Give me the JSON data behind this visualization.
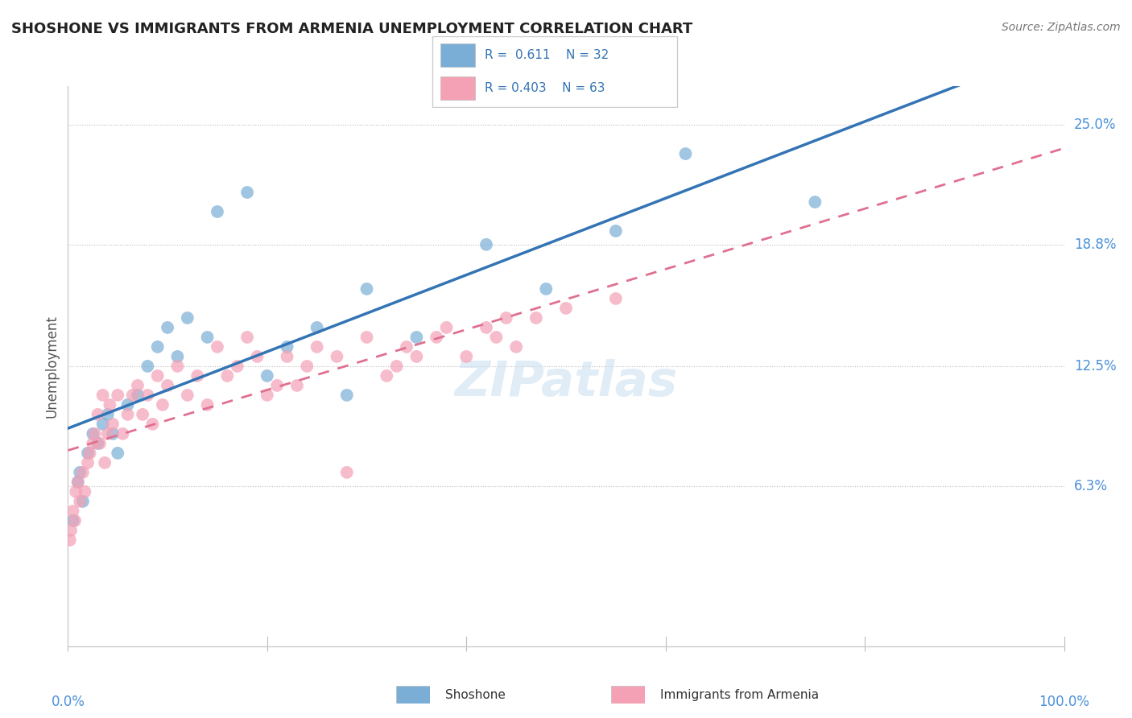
{
  "title": "SHOSHONE VS IMMIGRANTS FROM ARMENIA UNEMPLOYMENT CORRELATION CHART",
  "source": "Source: ZipAtlas.com",
  "ylabel": "Unemployment",
  "ytick_values": [
    6.3,
    12.5,
    18.8,
    25.0
  ],
  "ytick_labels": [
    "6.3%",
    "12.5%",
    "18.8%",
    "25.0%"
  ],
  "xlim": [
    0,
    100
  ],
  "ylim": [
    -2,
    27
  ],
  "legend_blue_r": "0.611",
  "legend_blue_n": "32",
  "legend_pink_r": "0.403",
  "legend_pink_n": "63",
  "shoshone_color": "#7aaed6",
  "armenia_color": "#f4a0b5",
  "shoshone_line_color": "#3374b5",
  "armenia_line_color": "#e07090",
  "watermark": "ZIPatlas",
  "shoshone_x": [
    0.5,
    1.0,
    1.2,
    1.5,
    2.0,
    2.5,
    3.0,
    3.5,
    4.0,
    4.5,
    5.0,
    6.0,
    7.0,
    8.0,
    9.0,
    10.0,
    11.0,
    12.0,
    14.0,
    15.0,
    18.0,
    20.0,
    22.0,
    25.0,
    28.0,
    30.0,
    35.0,
    42.0,
    48.0,
    55.0,
    62.0,
    75.0
  ],
  "shoshone_y": [
    4.5,
    6.5,
    7.0,
    5.5,
    8.0,
    9.0,
    8.5,
    9.5,
    10.0,
    9.0,
    8.0,
    10.5,
    11.0,
    12.5,
    13.5,
    14.5,
    13.0,
    15.0,
    14.0,
    20.5,
    21.5,
    12.0,
    13.5,
    14.5,
    11.0,
    16.5,
    14.0,
    18.8,
    16.5,
    19.5,
    23.5,
    21.0
  ],
  "armenia_x": [
    0.2,
    0.3,
    0.5,
    0.7,
    0.8,
    1.0,
    1.2,
    1.5,
    1.7,
    2.0,
    2.2,
    2.5,
    2.7,
    3.0,
    3.2,
    3.5,
    3.7,
    4.0,
    4.2,
    4.5,
    5.0,
    5.5,
    6.0,
    6.5,
    7.0,
    7.5,
    8.0,
    8.5,
    9.0,
    9.5,
    10.0,
    11.0,
    12.0,
    13.0,
    14.0,
    15.0,
    16.0,
    17.0,
    18.0,
    19.0,
    20.0,
    21.0,
    22.0,
    23.0,
    24.0,
    25.0,
    27.0,
    28.0,
    30.0,
    32.0,
    33.0,
    34.0,
    35.0,
    37.0,
    38.0,
    40.0,
    42.0,
    43.0,
    44.0,
    45.0,
    47.0,
    50.0,
    55.0
  ],
  "armenia_y": [
    3.5,
    4.0,
    5.0,
    4.5,
    6.0,
    6.5,
    5.5,
    7.0,
    6.0,
    7.5,
    8.0,
    8.5,
    9.0,
    10.0,
    8.5,
    11.0,
    7.5,
    9.0,
    10.5,
    9.5,
    11.0,
    9.0,
    10.0,
    11.0,
    11.5,
    10.0,
    11.0,
    9.5,
    12.0,
    10.5,
    11.5,
    12.5,
    11.0,
    12.0,
    10.5,
    13.5,
    12.0,
    12.5,
    14.0,
    13.0,
    11.0,
    11.5,
    13.0,
    11.5,
    12.5,
    13.5,
    13.0,
    7.0,
    14.0,
    12.0,
    12.5,
    13.5,
    13.0,
    14.0,
    14.5,
    13.0,
    14.5,
    14.0,
    15.0,
    13.5,
    15.0,
    15.5,
    16.0
  ]
}
